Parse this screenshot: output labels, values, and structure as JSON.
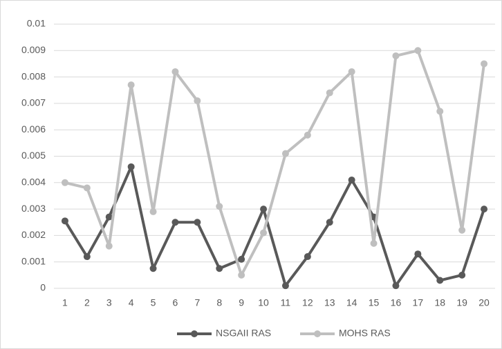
{
  "chart_data": {
    "type": "line",
    "categories": [
      "1",
      "2",
      "3",
      "4",
      "5",
      "6",
      "7",
      "8",
      "9",
      "10",
      "11",
      "12",
      "13",
      "14",
      "15",
      "16",
      "17",
      "18",
      "19",
      "20"
    ],
    "series": [
      {
        "name": "NSGAII RAS",
        "color": "#595959",
        "values": [
          0.00255,
          0.0012,
          0.0027,
          0.0046,
          0.00075,
          0.0025,
          0.0025,
          0.00075,
          0.0011,
          0.003,
          0.0001,
          0.0012,
          0.0025,
          0.0041,
          0.0027,
          0.0001,
          0.0013,
          0.0003,
          0.0005,
          0.003
        ]
      },
      {
        "name": "MOHS RAS",
        "color": "#bfbfbf",
        "values": [
          0.004,
          0.0038,
          0.0016,
          0.0077,
          0.0029,
          0.0082,
          0.0071,
          0.0031,
          0.0005,
          0.0021,
          0.0051,
          0.0058,
          0.0074,
          0.0082,
          0.0017,
          0.0088,
          0.009,
          0.0067,
          0.0022,
          0.0085
        ]
      }
    ],
    "ylim": [
      0,
      0.01
    ],
    "yticks": [
      0,
      0.001,
      0.002,
      0.003,
      0.004,
      0.005,
      0.006,
      0.007,
      0.008,
      0.009,
      0.01
    ],
    "grid": true,
    "legend": "bottom"
  }
}
